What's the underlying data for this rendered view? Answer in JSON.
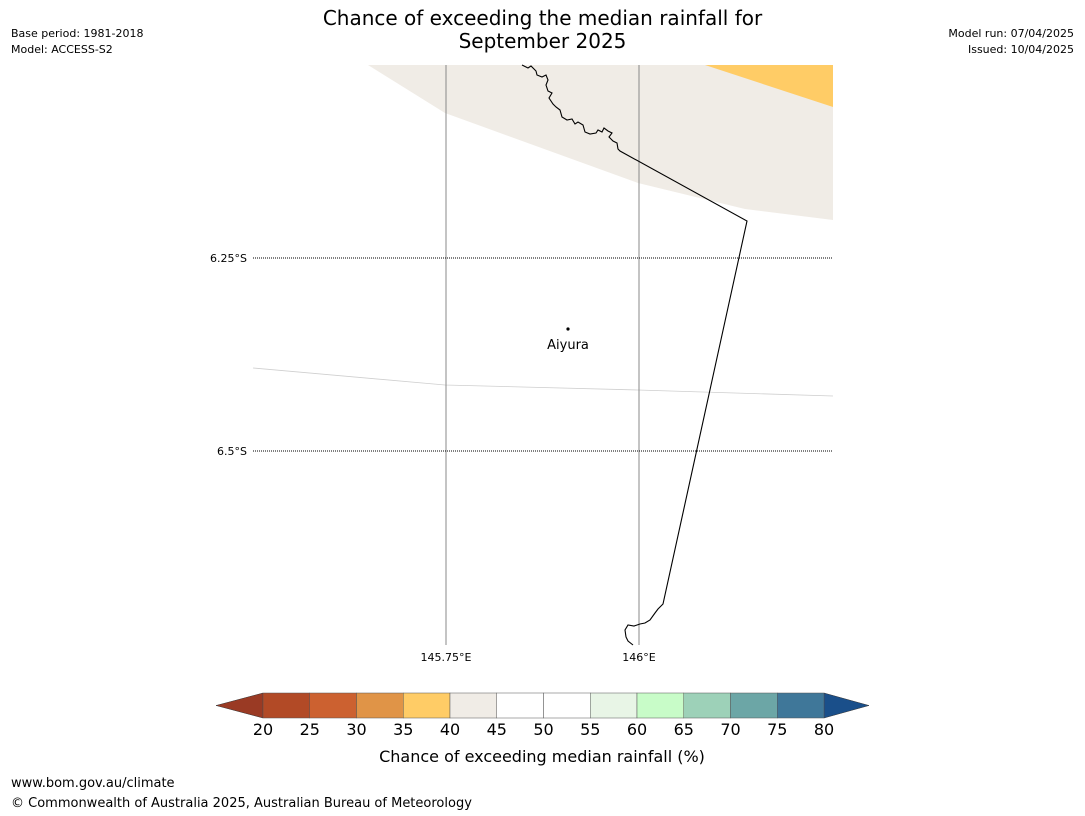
{
  "title": {
    "line1": "Chance of exceeding the median rainfall for",
    "line2": "September 2025"
  },
  "meta_left": {
    "base_period": "Base period: 1981-2018",
    "model": "Model: ACCESS-S2"
  },
  "meta_right": {
    "model_run": "Model run: 07/04/2025",
    "issued": "Issued: 10/04/2025"
  },
  "map": {
    "lat_labels": [
      "6.25°S",
      "6.5°S"
    ],
    "lon_labels": [
      "145.75°E",
      "146°E"
    ],
    "place": "Aiyura",
    "region_colors": {
      "band_35_40": "#ffcc66",
      "band_40_45": "#f0ece6",
      "band_45_55": "#ffffff"
    }
  },
  "colorbar": {
    "ticks": [
      "20",
      "25",
      "30",
      "35",
      "40",
      "45",
      "50",
      "55",
      "60",
      "65",
      "70",
      "75",
      "80"
    ],
    "under_color": "#9a3a24",
    "over_color": "#1a4f8a",
    "colors": [
      "#b24a26",
      "#cc6130",
      "#e09447",
      "#ffcc66",
      "#f0ece6",
      "#ffffff",
      "#ffffff",
      "#e8f5e6",
      "#c8fcc8",
      "#9dd1b8",
      "#6ca6a6",
      "#3f7799"
    ],
    "label": "Chance of exceeding median rainfall (%)"
  },
  "footer": {
    "url": "www.bom.gov.au/climate",
    "copyright": "© Commonwealth of Australia 2025, Australian Bureau of Meteorology"
  }
}
